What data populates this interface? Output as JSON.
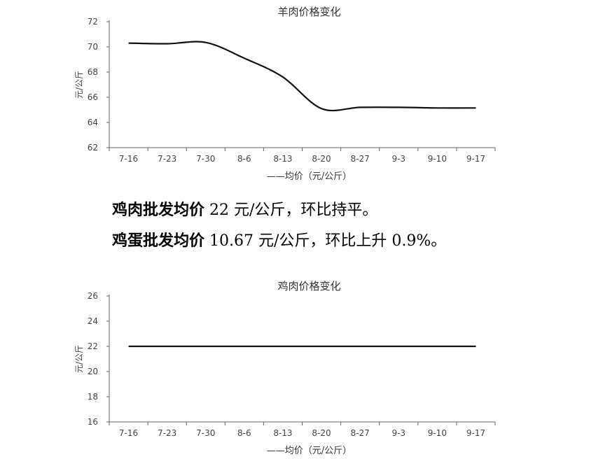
{
  "chart_data": [
    {
      "type": "line",
      "title": "羊肉价格变化",
      "ylabel": "元/公斤",
      "xlabel": "",
      "legend": "——均价（元/公斤）",
      "legend_position": "bottom",
      "grid": false,
      "ylim": [
        62,
        72
      ],
      "yticks": [
        "62",
        "64",
        "66",
        "68",
        "70",
        "72"
      ],
      "categories": [
        "7-16",
        "7-23",
        "7-30",
        "8-6",
        "8-13",
        "8-20",
        "8-27",
        "9-3",
        "9-10",
        "9-17"
      ],
      "series": [
        {
          "name": "均价（元/公斤）",
          "values": [
            70.3,
            70.25,
            70.35,
            69.1,
            67.6,
            65.1,
            65.2,
            65.2,
            65.15,
            65.15
          ]
        }
      ]
    },
    {
      "type": "line",
      "title": "鸡肉价格变化",
      "ylabel": "元/公斤",
      "xlabel": "",
      "legend": "——均价（元/公斤）",
      "legend_position": "bottom",
      "grid": false,
      "ylim": [
        16,
        26
      ],
      "yticks": [
        "16",
        "18",
        "20",
        "22",
        "24",
        "26"
      ],
      "categories": [
        "7-16",
        "7-23",
        "7-30",
        "8-6",
        "8-13",
        "8-20",
        "8-27",
        "9-3",
        "9-10",
        "9-17"
      ],
      "series": [
        {
          "name": "均价（元/公斤）",
          "values": [
            22,
            22,
            22,
            22,
            22,
            22,
            22,
            22,
            22,
            22
          ]
        }
      ]
    }
  ],
  "text": {
    "line1_bold": "鸡肉批发均价",
    "line1_rest": " 22 元/公斤，环比持平。",
    "line2_bold": "鸡蛋批发均价",
    "line2_rest": " 10.67 元/公斤，环比上升 0.9%。"
  }
}
